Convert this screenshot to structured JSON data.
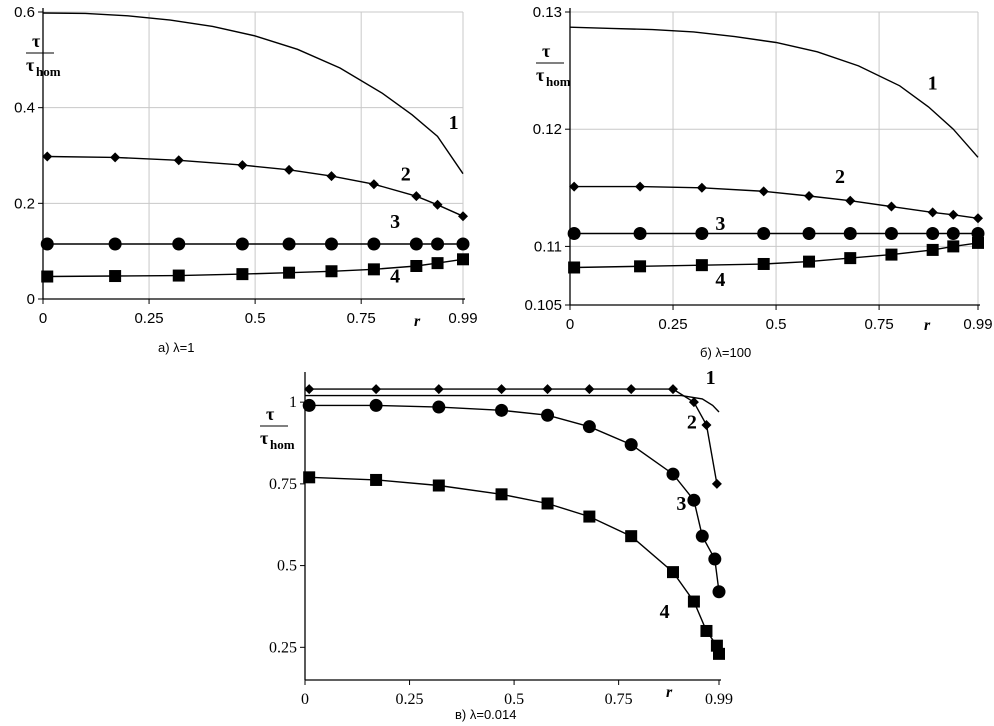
{
  "chart_data": [
    {
      "id": "a",
      "type": "line",
      "caption": "а) λ=1",
      "xlabel": "r",
      "ylabel_num": "τ",
      "ylabel_den": "τ",
      "ylabel_den_sub": "hom",
      "xlim": [
        0,
        0.99
      ],
      "ylim": [
        0,
        0.6
      ],
      "xticks": [
        "0",
        "0.25",
        "0.5",
        "0.75",
        "0.99"
      ],
      "xtick_values": [
        0,
        0.25,
        0.5,
        0.75,
        0.99
      ],
      "yticks": [
        "0",
        "0.2",
        "0.4",
        "0.6"
      ],
      "ytick_values": [
        0,
        0.2,
        0.4,
        0.6
      ],
      "grid": true,
      "series": [
        {
          "name": "1",
          "marker": "none",
          "x": [
            0,
            0.1,
            0.2,
            0.3,
            0.4,
            0.5,
            0.6,
            0.7,
            0.8,
            0.87,
            0.93,
            0.99
          ],
          "y": [
            0.598,
            0.597,
            0.592,
            0.583,
            0.57,
            0.55,
            0.522,
            0.483,
            0.43,
            0.385,
            0.34,
            0.262
          ],
          "label_x": 0.968,
          "label_y": 0.355
        },
        {
          "name": "2",
          "marker": "diamond",
          "x": [
            0.01,
            0.17,
            0.32,
            0.47,
            0.58,
            0.68,
            0.78,
            0.88,
            0.93,
            0.99
          ],
          "y": [
            0.298,
            0.296,
            0.29,
            0.28,
            0.27,
            0.257,
            0.24,
            0.215,
            0.197,
            0.173
          ],
          "label_x": 0.855,
          "label_y": 0.248
        },
        {
          "name": "3",
          "marker": "circle",
          "x": [
            0.01,
            0.17,
            0.32,
            0.47,
            0.58,
            0.68,
            0.78,
            0.88,
            0.93,
            0.99
          ],
          "y": [
            0.115,
            0.115,
            0.115,
            0.115,
            0.115,
            0.115,
            0.115,
            0.115,
            0.115,
            0.115
          ],
          "label_x": 0.83,
          "label_y": 0.148
        },
        {
          "name": "4",
          "marker": "square",
          "x": [
            0.01,
            0.17,
            0.32,
            0.47,
            0.58,
            0.68,
            0.78,
            0.88,
            0.93,
            0.99
          ],
          "y": [
            0.047,
            0.048,
            0.049,
            0.052,
            0.055,
            0.058,
            0.062,
            0.069,
            0.075,
            0.083
          ],
          "label_x": 0.83,
          "label_y": 0.035
        }
      ]
    },
    {
      "id": "b",
      "type": "line",
      "caption": "б) λ=100",
      "xlabel": "r",
      "ylabel_num": "τ",
      "ylabel_den": "τ",
      "ylabel_den_sub": "hom",
      "xlim": [
        0,
        0.99
      ],
      "ylim": [
        0.105,
        0.13
      ],
      "xticks": [
        "0",
        "0.25",
        "0.5",
        "0.75",
        "0.99"
      ],
      "xtick_values": [
        0,
        0.25,
        0.5,
        0.75,
        0.99
      ],
      "yticks": [
        "0.105",
        "0.11",
        "0.12",
        "0.13"
      ],
      "ytick_values": [
        0.105,
        0.11,
        0.12,
        0.13
      ],
      "grid": true,
      "series": [
        {
          "name": "1",
          "marker": "none",
          "x": [
            0,
            0.1,
            0.2,
            0.3,
            0.4,
            0.5,
            0.6,
            0.7,
            0.8,
            0.87,
            0.93,
            0.99
          ],
          "y": [
            0.1287,
            0.1286,
            0.1285,
            0.1283,
            0.1279,
            0.1274,
            0.1266,
            0.1254,
            0.1237,
            0.1219,
            0.12,
            0.1176
          ],
          "label_x": 0.88,
          "label_y": 0.1234
        },
        {
          "name": "2",
          "marker": "diamond",
          "x": [
            0.01,
            0.17,
            0.32,
            0.47,
            0.58,
            0.68,
            0.78,
            0.88,
            0.93,
            0.99
          ],
          "y": [
            0.1151,
            0.1151,
            0.115,
            0.1147,
            0.1143,
            0.1139,
            0.1134,
            0.1129,
            0.1127,
            0.1124
          ],
          "label_x": 0.655,
          "label_y": 0.1154
        },
        {
          "name": "3",
          "marker": "circle",
          "x": [
            0.01,
            0.17,
            0.32,
            0.47,
            0.58,
            0.68,
            0.78,
            0.88,
            0.93,
            0.99
          ],
          "y": [
            0.1111,
            0.1111,
            0.1111,
            0.1111,
            0.1111,
            0.1111,
            0.1111,
            0.1111,
            0.1111,
            0.1111
          ],
          "label_x": 0.365,
          "label_y": 0.1114
        },
        {
          "name": "4",
          "marker": "square",
          "x": [
            0.01,
            0.17,
            0.32,
            0.47,
            0.58,
            0.68,
            0.78,
            0.88,
            0.93,
            0.99
          ],
          "y": [
            0.1082,
            0.1083,
            0.1084,
            0.1085,
            0.1087,
            0.109,
            0.1093,
            0.1097,
            0.11,
            0.1103
          ],
          "label_x": 0.365,
          "label_y": 0.1066
        }
      ]
    },
    {
      "id": "c",
      "type": "line",
      "caption": "в) λ=0.014",
      "xlabel": "r",
      "ylabel_num": "τ",
      "ylabel_den": "τ",
      "ylabel_den_sub": "hom",
      "xlim": [
        0,
        0.99
      ],
      "ylim": [
        0.15,
        1.08
      ],
      "xticks": [
        "0",
        "0.25",
        "0.5",
        "0.75",
        "0.99"
      ],
      "xtick_values": [
        0,
        0.25,
        0.5,
        0.75,
        0.99
      ],
      "yticks": [
        "0.25",
        "0.5",
        "0.75",
        "1"
      ],
      "ytick_values": [
        0.25,
        0.5,
        0.75,
        1
      ],
      "grid": false,
      "series": [
        {
          "name": "1",
          "marker": "none",
          "x": [
            0,
            0.3,
            0.6,
            0.9,
            0.95,
            0.975,
            0.99
          ],
          "y": [
            1.02,
            1.02,
            1.02,
            1.02,
            1.01,
            0.99,
            0.97
          ],
          "label_x": 0.97,
          "label_y": 1.055
        },
        {
          "name": "2",
          "marker": "diamond",
          "x": [
            0.01,
            0.17,
            0.32,
            0.47,
            0.58,
            0.68,
            0.78,
            0.88,
            0.93,
            0.96,
            0.985
          ],
          "y": [
            1.04,
            1.04,
            1.04,
            1.04,
            1.04,
            1.04,
            1.04,
            1.04,
            1.0,
            0.93,
            0.75
          ],
          "label_x": 0.925,
          "label_y": 0.92
        },
        {
          "name": "3",
          "marker": "circle",
          "x": [
            0.01,
            0.17,
            0.32,
            0.47,
            0.58,
            0.68,
            0.78,
            0.88,
            0.93,
            0.95,
            0.98,
            0.99
          ],
          "y": [
            0.99,
            0.99,
            0.985,
            0.975,
            0.96,
            0.925,
            0.87,
            0.78,
            0.7,
            0.59,
            0.52,
            0.42
          ],
          "label_x": 0.9,
          "label_y": 0.67
        },
        {
          "name": "4",
          "marker": "square",
          "x": [
            0.01,
            0.17,
            0.32,
            0.47,
            0.58,
            0.68,
            0.78,
            0.88,
            0.93,
            0.96,
            0.985,
            0.99
          ],
          "y": [
            0.77,
            0.762,
            0.745,
            0.718,
            0.69,
            0.65,
            0.59,
            0.48,
            0.39,
            0.3,
            0.255,
            0.23
          ],
          "label_x": 0.86,
          "label_y": 0.34
        }
      ]
    }
  ]
}
